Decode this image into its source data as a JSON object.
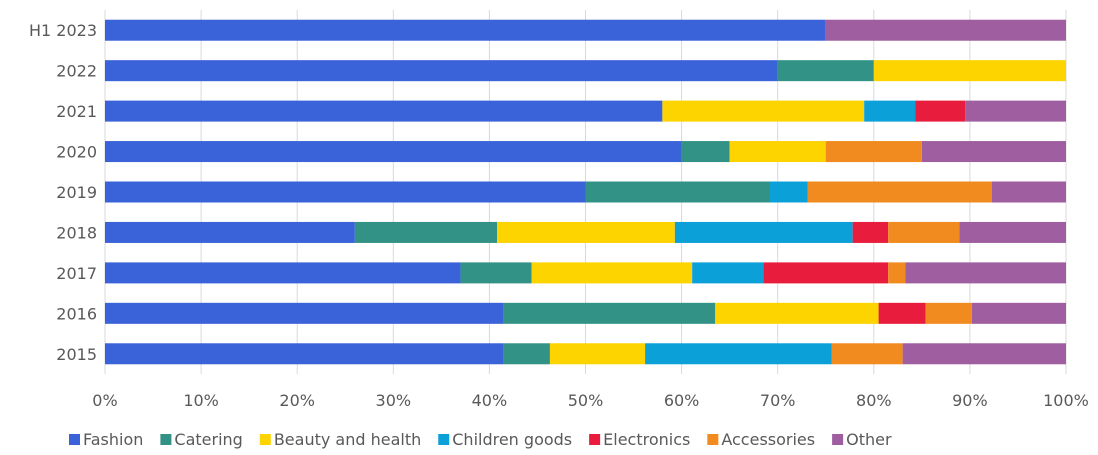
{
  "chart_data": {
    "type": "bar",
    "orientation": "horizontal",
    "stacked": true,
    "percent_stacked": true,
    "categories": [
      "H1 2023",
      "2022",
      "2021",
      "2020",
      "2019",
      "2018",
      "2017",
      "2016",
      "2015"
    ],
    "series": [
      {
        "name": "Fashion",
        "color": "#3a62d9",
        "values": [
          75.0,
          70.0,
          58.0,
          60.0,
          50.0,
          26.0,
          37.0,
          41.5,
          41.5
        ]
      },
      {
        "name": "Catering",
        "color": "#339286",
        "values": [
          0.0,
          10.0,
          0.0,
          5.0,
          19.2,
          14.8,
          7.4,
          22.0,
          4.8
        ]
      },
      {
        "name": "Beauty and health",
        "color": "#fdd300",
        "values": [
          0.0,
          20.0,
          21.0,
          10.0,
          0.0,
          18.5,
          16.7,
          17.0,
          9.9
        ]
      },
      {
        "name": "Children goods",
        "color": "#0ca0d8",
        "values": [
          0.0,
          0.0,
          5.3,
          0.0,
          3.9,
          18.5,
          7.4,
          0.0,
          19.4
        ]
      },
      {
        "name": "Electronics",
        "color": "#e81c3c",
        "values": [
          0.0,
          0.0,
          5.2,
          0.0,
          0.0,
          3.7,
          13.0,
          4.9,
          0.0
        ]
      },
      {
        "name": "Accessories",
        "color": "#f28b1f",
        "values": [
          0.0,
          0.0,
          0.0,
          10.0,
          19.2,
          7.4,
          1.8,
          4.8,
          7.4
        ]
      },
      {
        "name": "Other",
        "color": "#9e5ea0",
        "values": [
          25.0,
          0.0,
          10.5,
          15.0,
          7.7,
          11.1,
          16.7,
          9.8,
          17.0
        ]
      }
    ],
    "x_ticks": [
      "0%",
      "10%",
      "20%",
      "30%",
      "40%",
      "50%",
      "60%",
      "70%",
      "80%",
      "90%",
      "100%"
    ],
    "xlim": [
      0,
      100
    ],
    "grid": "vertical",
    "legend_position": "bottom"
  }
}
